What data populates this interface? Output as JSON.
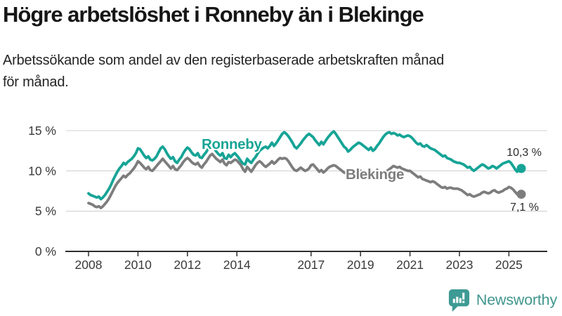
{
  "header": {
    "title": "Högre arbetslöshet i Ronneby än i Blekinge",
    "subtitle_lines": {
      "line1": "Arbetssökande som andel av den registerbaserade arbetskraften månad",
      "line2": "för månad."
    }
  },
  "colors": {
    "ronneby": "#16a496",
    "blekinge": "#7d7d7d",
    "grid": "#d9d9d9",
    "axis": "#2e2e2e",
    "tick_text": "#3a3a3a",
    "value_text": "#2b2b2b",
    "logo": "#41968e"
  },
  "logo": {
    "text": "Newsworthy",
    "icon": "bar-chart-speech-bubble-icon"
  },
  "chart_data": {
    "type": "line",
    "title": "Högre arbetslöshet i Ronneby än i Blekinge",
    "subtitle": "Arbetssökande som andel av den registerbaserade arbetskraften månad för månad.",
    "unit": "%",
    "grid": true,
    "legend_position": "inline-labels",
    "xlim": [
      2008.0,
      2025.5
    ],
    "ylim": [
      0,
      15.5
    ],
    "start_year": 2008.0,
    "points_per_year": 12,
    "x_ticks": [
      2008,
      2010,
      2012,
      2014,
      2017,
      2019,
      2021,
      2023,
      2025
    ],
    "y_ticks": [
      {
        "value": 0,
        "label": "0 %"
      },
      {
        "value": 5,
        "label": "5 %"
      },
      {
        "value": 10,
        "label": "10 %"
      },
      {
        "value": 15,
        "label": "15 %"
      }
    ],
    "series": [
      {
        "name": "Ronneby",
        "color": "#16a496",
        "end_label": "10,3 %",
        "last_value": 10.3,
        "values": [
          7.2,
          7.0,
          6.9,
          6.8,
          6.7,
          6.8,
          6.5,
          6.7,
          7.0,
          7.4,
          7.8,
          8.3,
          8.9,
          9.4,
          9.9,
          10.3,
          10.6,
          11.0,
          10.8,
          11.1,
          11.3,
          11.5,
          11.8,
          12.2,
          12.8,
          12.7,
          12.3,
          11.9,
          11.6,
          11.8,
          11.4,
          11.3,
          11.5,
          11.8,
          12.3,
          12.8,
          13.0,
          12.7,
          12.2,
          11.8,
          11.5,
          11.7,
          11.2,
          11.0,
          11.4,
          11.7,
          12.2,
          12.6,
          12.9,
          12.7,
          12.3,
          12.0,
          11.9,
          12.2,
          11.7,
          11.6,
          12.0,
          12.3,
          12.7,
          13.0,
          13.0,
          12.8,
          12.4,
          12.1,
          11.9,
          12.2,
          11.6,
          11.5,
          12.0,
          11.7,
          12.0,
          12.2,
          11.9,
          11.6,
          11.2,
          10.9,
          10.8,
          11.5,
          11.2,
          11.0,
          11.4,
          11.7,
          12.1,
          12.5,
          12.7,
          12.9,
          13.0,
          12.8,
          13.1,
          13.5,
          13.1,
          13.4,
          13.8,
          14.2,
          14.6,
          14.8,
          14.6,
          14.3,
          13.9,
          13.5,
          13.0,
          12.8,
          13.1,
          13.4,
          13.8,
          14.1,
          14.4,
          14.6,
          14.4,
          14.2,
          13.8,
          13.5,
          13.2,
          13.6,
          13.3,
          13.7,
          14.1,
          14.4,
          14.7,
          14.9,
          14.6,
          14.2,
          13.8,
          13.4,
          13.0,
          12.8,
          12.4,
          12.6,
          12.9,
          13.1,
          13.3,
          13.5,
          13.4,
          13.2,
          13.0,
          12.8,
          12.6,
          12.9,
          12.5,
          12.7,
          13.1,
          13.4,
          13.8,
          14.2,
          14.5,
          14.7,
          14.8,
          14.6,
          14.7,
          14.6,
          14.4,
          14.5,
          14.3,
          14.2,
          14.3,
          14.4,
          14.3,
          14.1,
          13.8,
          13.5,
          13.3,
          13.4,
          13.1,
          13.0,
          13.2,
          13.0,
          12.8,
          12.7,
          12.6,
          12.4,
          12.2,
          12.0,
          11.8,
          11.9,
          11.6,
          11.5,
          11.4,
          11.2,
          11.1,
          11.0,
          11.0,
          10.9,
          10.8,
          10.6,
          10.4,
          10.5,
          10.2,
          10.0,
          10.2,
          10.4,
          10.6,
          10.8,
          10.7,
          10.5,
          10.3,
          10.4,
          10.6,
          10.5,
          10.3,
          10.5,
          10.7,
          10.9,
          11.0,
          11.1,
          11.2,
          11.0,
          10.6,
          10.2,
          9.9,
          10.1,
          10.3
        ]
      },
      {
        "name": "Blekinge",
        "color": "#7d7d7d",
        "end_label": "7,1 %",
        "last_value": 7.1,
        "values": [
          6.0,
          5.9,
          5.8,
          5.6,
          5.5,
          5.6,
          5.4,
          5.6,
          5.9,
          6.2,
          6.6,
          7.1,
          7.6,
          8.1,
          8.5,
          8.8,
          9.1,
          9.4,
          9.2,
          9.5,
          9.7,
          10.0,
          10.3,
          10.7,
          11.2,
          11.0,
          10.7,
          10.4,
          10.2,
          10.5,
          10.1,
          10.0,
          10.3,
          10.6,
          10.9,
          11.2,
          11.5,
          11.2,
          10.9,
          10.6,
          10.3,
          10.6,
          10.2,
          10.1,
          10.4,
          10.7,
          11.1,
          11.4,
          11.6,
          11.4,
          11.1,
          10.9,
          10.8,
          11.0,
          10.6,
          10.4,
          10.8,
          11.1,
          11.5,
          11.9,
          12.1,
          11.8,
          11.5,
          11.3,
          11.1,
          11.4,
          10.9,
          10.7,
          11.1,
          11.0,
          11.2,
          11.4,
          11.3,
          11.0,
          10.7,
          10.2,
          9.9,
          10.5,
          10.2,
          9.9,
          10.3,
          10.7,
          11.0,
          11.2,
          11.0,
          10.7,
          10.5,
          10.7,
          10.9,
          11.2,
          10.9,
          11.1,
          11.4,
          11.6,
          11.5,
          11.6,
          11.5,
          11.2,
          10.8,
          10.4,
          10.1,
          10.0,
          10.2,
          10.4,
          10.2,
          10.0,
          10.1,
          10.3,
          10.7,
          10.8,
          10.5,
          10.2,
          9.9,
          10.1,
          9.8,
          10.0,
          10.3,
          10.5,
          10.6,
          10.7,
          10.6,
          10.4,
          10.2,
          10.0,
          9.8,
          9.7,
          9.5,
          9.6,
          9.8,
          9.9,
          10.0,
          10.1,
          10.0,
          9.9,
          9.7,
          9.6,
          9.4,
          9.6,
          9.3,
          9.4,
          9.6,
          9.7,
          9.8,
          9.9,
          9.9,
          10.0,
          10.2,
          10.4,
          10.6,
          10.5,
          10.4,
          10.5,
          10.3,
          10.2,
          10.1,
          10.0,
          10.0,
          9.8,
          9.6,
          9.4,
          9.2,
          9.3,
          9.0,
          8.9,
          8.8,
          8.7,
          8.6,
          8.7,
          8.6,
          8.4,
          8.2,
          8.0,
          7.9,
          8.0,
          7.8,
          7.9,
          7.9,
          7.8,
          7.8,
          7.8,
          7.7,
          7.6,
          7.4,
          7.2,
          7.0,
          7.1,
          6.9,
          6.8,
          6.9,
          7.0,
          7.1,
          7.3,
          7.4,
          7.3,
          7.2,
          7.3,
          7.5,
          7.6,
          7.4,
          7.3,
          7.4,
          7.5,
          7.7,
          7.8,
          8.0,
          7.9,
          7.7,
          7.4,
          7.1,
          7.0,
          7.1
        ]
      }
    ]
  }
}
